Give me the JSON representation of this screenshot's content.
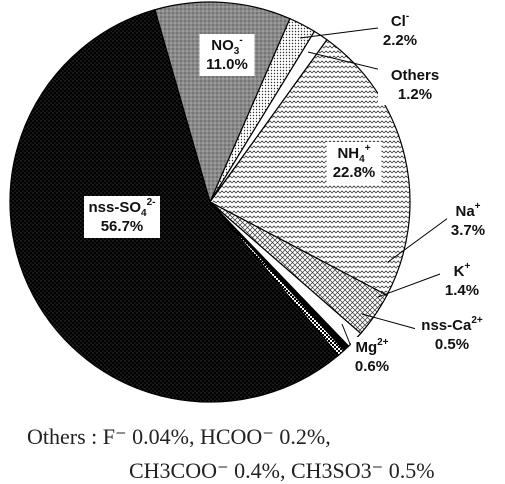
{
  "chart_data": {
    "type": "pie",
    "slices": [
      {
        "name": "NO3-",
        "value": 11.0,
        "label": "NO",
        "sub": "3",
        "sup": "-",
        "pct": "11.0%",
        "fill": "grey-dots"
      },
      {
        "name": "Cl-",
        "value": 2.2,
        "label": "Cl",
        "sub": "",
        "sup": "-",
        "pct": "2.2%",
        "fill": "fine-dots"
      },
      {
        "name": "Others",
        "value": 1.2,
        "label": "Others",
        "sub": "",
        "sup": "",
        "pct": "1.2%",
        "fill": "white"
      },
      {
        "name": "NH4+",
        "value": 22.8,
        "label": "NH",
        "sub": "4",
        "sup": "+",
        "pct": "22.8%",
        "fill": "zigzag"
      },
      {
        "name": "Na+",
        "value": 3.7,
        "label": "Na",
        "sub": "",
        "sup": "+",
        "pct": "3.7%",
        "fill": "crosshatch"
      },
      {
        "name": "K+",
        "value": 1.4,
        "label": "K",
        "sub": "",
        "sup": "+",
        "pct": "1.4%",
        "fill": "white"
      },
      {
        "name": "nss-Ca2+",
        "value": 0.5,
        "label": "nss-Ca",
        "sub": "",
        "sup": "2+",
        "pct": "0.5%",
        "fill": "black"
      },
      {
        "name": "Mg2+",
        "value": 0.6,
        "label": "Mg",
        "sub": "",
        "sup": "2+",
        "pct": "0.6%",
        "fill": "checker"
      },
      {
        "name": "nss-SO42-",
        "value": 56.7,
        "label": "nss-SO",
        "sub": "4",
        "sup": "2-",
        "pct": "56.7%",
        "fill": "dark-dots"
      }
    ]
  },
  "note": {
    "line1": "Others : F⁻ 0.04%, HCOO⁻ 0.2%,",
    "line2": "CH3COO⁻ 0.4%, CH3SO3⁻ 0.5%"
  }
}
